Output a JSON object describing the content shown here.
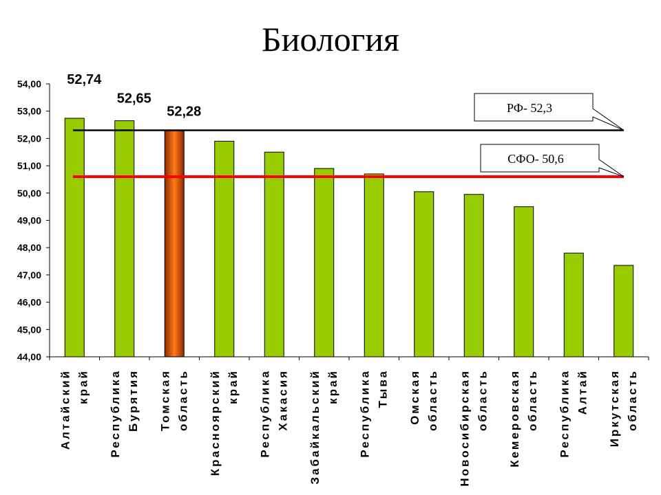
{
  "chart_data": {
    "type": "bar",
    "title": "Биология",
    "categories": [
      [
        "Алтайский",
        "край"
      ],
      [
        "Республика",
        "Бурятия"
      ],
      [
        "Томская",
        "область"
      ],
      [
        "Красноярский",
        "край"
      ],
      [
        "Республика",
        "Хакасия"
      ],
      [
        "Забайкальский",
        "край"
      ],
      [
        "Республика",
        "Тыва"
      ],
      [
        "Омская",
        "область"
      ],
      [
        "Новосибирская",
        "область"
      ],
      [
        "Кемеровская",
        "область"
      ],
      [
        "Республика",
        "Алтай"
      ],
      [
        "Иркутская",
        "область"
      ]
    ],
    "values": [
      52.74,
      52.65,
      52.28,
      51.9,
      51.5,
      50.9,
      50.7,
      50.05,
      49.95,
      49.5,
      47.8,
      47.35
    ],
    "data_labels": [
      "52,74",
      "52,65",
      "52,28",
      null,
      null,
      null,
      null,
      null,
      null,
      null,
      null,
      null
    ],
    "highlight_index": 2,
    "ylim": [
      44,
      54
    ],
    "yticks": [
      "44,00",
      "45,00",
      "46,00",
      "47,00",
      "48,00",
      "49,00",
      "50,00",
      "51,00",
      "52,00",
      "53,00",
      "54,00"
    ],
    "reference_lines": [
      {
        "label": "РФ- 52,3",
        "value": 52.3,
        "color": "#000000"
      },
      {
        "label": "СФО- 50,6",
        "value": 50.6,
        "color": "#ff0000"
      }
    ],
    "colors": {
      "bar": "#99cc00",
      "highlight": "#e85a10",
      "highlight_dark": "#8a2a00"
    },
    "xlabel": "",
    "ylabel": "",
    "grid": false
  }
}
